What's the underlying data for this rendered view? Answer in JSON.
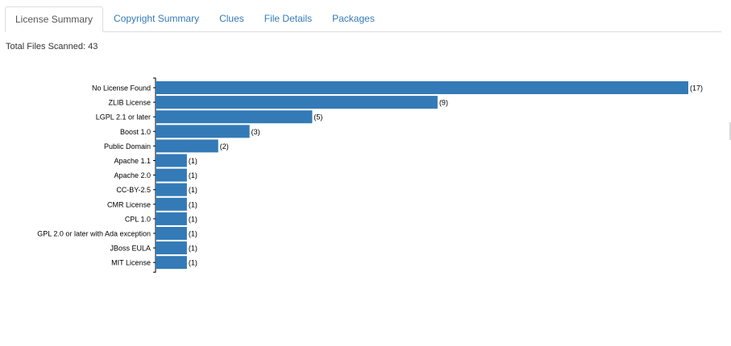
{
  "tabs": [
    {
      "label": "License Summary",
      "active": true
    },
    {
      "label": "Copyright Summary",
      "active": false
    },
    {
      "label": "Clues",
      "active": false
    },
    {
      "label": "File Details",
      "active": false
    },
    {
      "label": "Packages",
      "active": false
    }
  ],
  "summary": {
    "total_text": "Total Files Scanned: 43"
  },
  "colors": {
    "bar": "#337ab7",
    "link": "#337ab7",
    "active_tab_text": "#555555"
  },
  "chart_data": {
    "type": "bar",
    "orientation": "horizontal",
    "categories": [
      "No License Found",
      "ZLIB License",
      "LGPL 2.1 or later",
      "Boost 1.0",
      "Public Domain",
      "Apache 1.1",
      "Apache 2.0",
      "CC-BY-2.5",
      "CMR License",
      "CPL 1.0",
      "GPL 2.0 or later with Ada exception",
      "JBoss EULA",
      "MIT License"
    ],
    "values": [
      17,
      9,
      5,
      3,
      2,
      1,
      1,
      1,
      1,
      1,
      1,
      1,
      1
    ],
    "value_labels": [
      "(17)",
      "(9)",
      "(5)",
      "(3)",
      "(2)",
      "(1)",
      "(1)",
      "(1)",
      "(1)",
      "(1)",
      "(1)",
      "(1)",
      "(1)"
    ],
    "xlim": [
      0,
      17
    ],
    "grid": false,
    "legend": false
  }
}
